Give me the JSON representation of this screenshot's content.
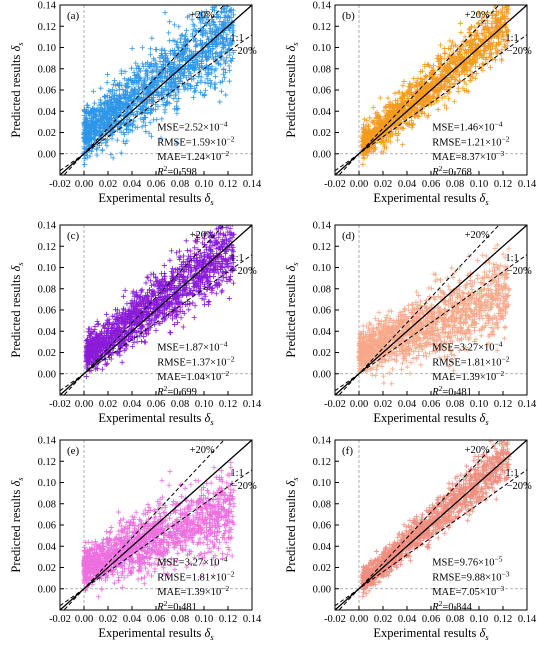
{
  "figure": {
    "panel_order": [
      "a",
      "b",
      "c",
      "d",
      "e",
      "f"
    ]
  },
  "chart_data": [
    {
      "type": "scatter",
      "panel_label": "(a)",
      "color": "#2f96e8",
      "xlabel_text": "Experimental results ",
      "xlabel_symbol": "δ",
      "xlabel_sub": "s",
      "ylabel_text": "Predicted results ",
      "ylabel_symbol": "δ",
      "ylabel_sub": "s",
      "xlim": [
        -0.02,
        0.14
      ],
      "ylim": [
        -0.02,
        0.14
      ],
      "xticks": [
        "-0.02",
        "0.00",
        "0.02",
        "0.04",
        "0.06",
        "0.08",
        "0.10",
        "0.12",
        "0.14"
      ],
      "yticks": [
        "0.00",
        "0.02",
        "0.04",
        "0.06",
        "0.08",
        "0.10",
        "0.12",
        "0.14"
      ],
      "reference_lines": {
        "identity": "1:1",
        "upper": "+20%",
        "lower": "−20%"
      },
      "stats": {
        "mse_label": "MSE=",
        "mse_value": "2.52×10",
        "mse_exp": "−4",
        "rmse_label": "RMSE=",
        "rmse_value": "1.59×10",
        "rmse_exp": "−2",
        "mae_label": "MAE=",
        "mae_value": "1.24×10",
        "mae_exp": "−2",
        "r2_label": "R",
        "r2_sup": "2",
        "r2_value": "=0.598"
      },
      "scatter_pattern": {
        "points": 1600,
        "x_range": [
          0.0,
          0.125
        ],
        "y_slope": 0.82,
        "y_offset": 0.018,
        "y_spread": 0.018
      }
    },
    {
      "type": "scatter",
      "panel_label": "(b)",
      "color": "#f39b1f",
      "xlabel_text": "Experimental results ",
      "xlabel_symbol": "δ",
      "xlabel_sub": "s",
      "ylabel_text": "Predicted results ",
      "ylabel_symbol": "δ",
      "ylabel_sub": "s",
      "xlim": [
        -0.02,
        0.14
      ],
      "ylim": [
        -0.02,
        0.14
      ],
      "xticks": [
        "-0.02",
        "0.00",
        "0.02",
        "0.04",
        "0.06",
        "0.08",
        "0.10",
        "0.12",
        "0.14"
      ],
      "yticks": [
        "0.00",
        "0.02",
        "0.04",
        "0.06",
        "0.08",
        "0.10",
        "0.12",
        "0.14"
      ],
      "reference_lines": {
        "identity": "1:1",
        "upper": "+20%",
        "lower": "−20%"
      },
      "stats": {
        "mse_label": "MSE=",
        "mse_value": "1.46×10",
        "mse_exp": "−4",
        "rmse_label": "RMSE=",
        "rmse_value": "1.21×10",
        "rmse_exp": "−2",
        "mae_label": "MAE=",
        "mae_value": "8.37×10",
        "mae_exp": "−3",
        "r2_label": "R",
        "r2_sup": "2",
        "r2_value": "=0.768"
      },
      "scatter_pattern": {
        "points": 1500,
        "x_range": [
          0.003,
          0.125
        ],
        "y_slope": 0.95,
        "y_offset": 0.006,
        "y_spread": 0.012
      }
    },
    {
      "type": "scatter",
      "panel_label": "(c)",
      "color": "#8a1bd8",
      "xlabel_text": "Experimental results ",
      "xlabel_symbol": "δ",
      "xlabel_sub": "s",
      "ylabel_text": "Predicted results ",
      "ylabel_symbol": "δ",
      "ylabel_sub": "s",
      "xlim": [
        -0.02,
        0.14
      ],
      "ylim": [
        -0.02,
        0.14
      ],
      "xticks": [
        "-0.02",
        "0.00",
        "0.02",
        "0.04",
        "0.06",
        "0.08",
        "0.10",
        "0.12",
        "0.14"
      ],
      "yticks": [
        "0.00",
        "0.02",
        "0.04",
        "0.06",
        "0.08",
        "0.10",
        "0.12",
        "0.14"
      ],
      "reference_lines": {
        "identity": "1:1",
        "upper": "+20%",
        "lower": "−20%"
      },
      "stats": {
        "mse_label": "MSE=",
        "mse_value": "1.87×10",
        "mse_exp": "−4",
        "rmse_label": "RMSE=",
        "rmse_value": "1.37×10",
        "rmse_exp": "−2",
        "mae_label": "MAE=",
        "mae_value": "1.04×10",
        "mae_exp": "−2",
        "r2_label": "R",
        "r2_sup": "2",
        "r2_value": "=0.699"
      },
      "scatter_pattern": {
        "points": 1600,
        "x_range": [
          0.002,
          0.125
        ],
        "y_slope": 0.85,
        "y_offset": 0.015,
        "y_spread": 0.014
      }
    },
    {
      "type": "scatter",
      "panel_label": "(d)",
      "color": "#f7a98a",
      "xlabel_text": "Experimental results ",
      "xlabel_symbol": "δ",
      "xlabel_sub": "s",
      "ylabel_text": "Predicted results ",
      "ylabel_symbol": "δ",
      "ylabel_sub": "s",
      "xlim": [
        -0.02,
        0.14
      ],
      "ylim": [
        -0.02,
        0.14
      ],
      "xticks": [
        "-0.02",
        "0.00",
        "0.02",
        "0.04",
        "0.06",
        "0.08",
        "0.10",
        "0.12",
        "0.14"
      ],
      "yticks": [
        "0.00",
        "0.02",
        "0.04",
        "0.06",
        "0.08",
        "0.10",
        "0.12",
        "0.14"
      ],
      "reference_lines": {
        "identity": "1:1",
        "upper": "+20%",
        "lower": "−20%"
      },
      "stats": {
        "mse_label": "MSE=",
        "mse_value": "3.27×10",
        "mse_exp": "−4",
        "rmse_label": "RMSE=",
        "rmse_value": "1.81×10",
        "rmse_exp": "−2",
        "mae_label": "MAE=",
        "mae_value": "1.39×10",
        "mae_exp": "−2",
        "r2_label": "R",
        "r2_sup": "2",
        "r2_value": "=0.481"
      },
      "scatter_pattern": {
        "points": 1600,
        "x_range": [
          0.0,
          0.125
        ],
        "y_slope": 0.45,
        "y_offset": 0.02,
        "y_spread": 0.016
      }
    },
    {
      "type": "scatter",
      "panel_label": "(e)",
      "color": "#ee6fe0",
      "xlabel_text": "Experimental results ",
      "xlabel_symbol": "δ",
      "xlabel_sub": "s",
      "ylabel_text": "Predicted results ",
      "ylabel_symbol": "δ",
      "ylabel_sub": "s",
      "xlim": [
        -0.02,
        0.14
      ],
      "ylim": [
        -0.02,
        0.14
      ],
      "xticks": [
        "-0.02",
        "0.00",
        "0.02",
        "0.04",
        "0.06",
        "0.08",
        "0.10",
        "0.12",
        "0.14"
      ],
      "yticks": [
        "0.00",
        "0.02",
        "0.04",
        "0.06",
        "0.08",
        "0.10",
        "0.12",
        "0.14"
      ],
      "reference_lines": {
        "identity": "1:1",
        "upper": "+20%",
        "lower": "−20%"
      },
      "stats": {
        "mse_label": "MSE=",
        "mse_value": "3.27×10",
        "mse_exp": "−4",
        "rmse_label": "RMSE=",
        "rmse_value": "1.81×10",
        "rmse_exp": "−2",
        "mae_label": "MAE=",
        "mae_value": "1.39×10",
        "mae_exp": "−2",
        "r2_label": "R",
        "r2_sup": "2",
        "r2_value": "=0.481"
      },
      "scatter_pattern": {
        "points": 1600,
        "x_range": [
          0.0,
          0.125
        ],
        "y_slope": 0.45,
        "y_offset": 0.02,
        "y_spread": 0.016
      }
    },
    {
      "type": "scatter",
      "panel_label": "(f)",
      "color": "#ef8f80",
      "xlabel_text": "Experimental results ",
      "xlabel_symbol": "δ",
      "xlabel_sub": "s",
      "ylabel_text": "Predicted results ",
      "ylabel_symbol": "δ",
      "ylabel_sub": "s",
      "xlim": [
        -0.02,
        0.14
      ],
      "ylim": [
        -0.02,
        0.14
      ],
      "xticks": [
        "-0.02",
        "0.00",
        "0.02",
        "0.04",
        "0.06",
        "0.08",
        "0.10",
        "0.12",
        "0.14"
      ],
      "yticks": [
        "0.00",
        "0.02",
        "0.04",
        "0.06",
        "0.08",
        "0.10",
        "0.12",
        "0.14"
      ],
      "reference_lines": {
        "identity": "1:1",
        "upper": "+20%",
        "lower": "−20%"
      },
      "stats": {
        "mse_label": "MSE=",
        "mse_value": "9.76×10",
        "mse_exp": "−5",
        "rmse_label": "RMSE=",
        "rmse_value": "9.88×10",
        "rmse_exp": "−3",
        "mae_label": "MAE=",
        "mae_value": "7.05×10",
        "mae_exp": "−3",
        "r2_label": "R",
        "r2_sup": "2",
        "r2_value": "=0.844"
      },
      "scatter_pattern": {
        "points": 1500,
        "x_range": [
          0.003,
          0.125
        ],
        "y_slope": 0.97,
        "y_offset": 0.004,
        "y_spread": 0.009
      }
    }
  ]
}
